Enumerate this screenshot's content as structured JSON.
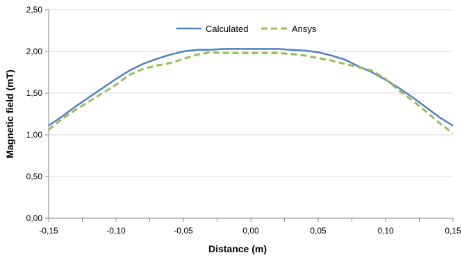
{
  "chart_data": {
    "type": "line",
    "title": "",
    "xlabel": "Distance (m)",
    "ylabel": "Magnetic field (mT)",
    "xlim": [
      -0.15,
      0.15
    ],
    "ylim": [
      0.0,
      2.5
    ],
    "x_ticks": [
      "-0,15",
      "-0,10",
      "-0,05",
      "0,00",
      "0,05",
      "0,10",
      "0,15"
    ],
    "x_tick_values": [
      -0.15,
      -0.1,
      -0.05,
      0.0,
      0.05,
      0.1,
      0.15
    ],
    "y_ticks": [
      "0,00",
      "0,50",
      "1,00",
      "1,50",
      "2,00",
      "2,50"
    ],
    "y_tick_values": [
      0.0,
      0.5,
      1.0,
      1.5,
      2.0,
      2.5
    ],
    "grid": "horizontal",
    "legend_position": "top-center",
    "series": [
      {
        "name": "Calculated",
        "color": "#4f81bd",
        "style": "solid",
        "x": [
          -0.15,
          -0.14,
          -0.13,
          -0.12,
          -0.11,
          -0.1,
          -0.09,
          -0.08,
          -0.07,
          -0.06,
          -0.05,
          -0.04,
          -0.03,
          -0.02,
          -0.01,
          0.0,
          0.01,
          0.02,
          0.03,
          0.04,
          0.05,
          0.06,
          0.07,
          0.08,
          0.09,
          0.1,
          0.11,
          0.12,
          0.13,
          0.14,
          0.15
        ],
        "y": [
          1.11,
          1.22,
          1.34,
          1.45,
          1.56,
          1.67,
          1.77,
          1.85,
          1.91,
          1.96,
          2.0,
          2.02,
          2.02,
          2.03,
          2.03,
          2.03,
          2.03,
          2.03,
          2.02,
          2.01,
          1.99,
          1.95,
          1.9,
          1.82,
          1.75,
          1.66,
          1.56,
          1.45,
          1.33,
          1.21,
          1.11
        ]
      },
      {
        "name": "Ansys",
        "color": "#9bbb59",
        "style": "dashed",
        "x": [
          -0.15,
          -0.14,
          -0.13,
          -0.12,
          -0.11,
          -0.1,
          -0.09,
          -0.08,
          -0.07,
          -0.06,
          -0.05,
          -0.04,
          -0.03,
          -0.02,
          -0.01,
          0.0,
          0.01,
          0.02,
          0.03,
          0.04,
          0.05,
          0.06,
          0.07,
          0.08,
          0.09,
          0.1,
          0.11,
          0.12,
          0.13,
          0.14,
          0.15
        ],
        "y": [
          1.06,
          1.19,
          1.3,
          1.4,
          1.5,
          1.6,
          1.72,
          1.79,
          1.83,
          1.86,
          1.91,
          1.96,
          1.99,
          1.98,
          1.98,
          1.98,
          1.98,
          1.98,
          1.97,
          1.95,
          1.92,
          1.89,
          1.85,
          1.81,
          1.77,
          1.67,
          1.53,
          1.41,
          1.28,
          1.14,
          1.02
        ]
      }
    ]
  }
}
